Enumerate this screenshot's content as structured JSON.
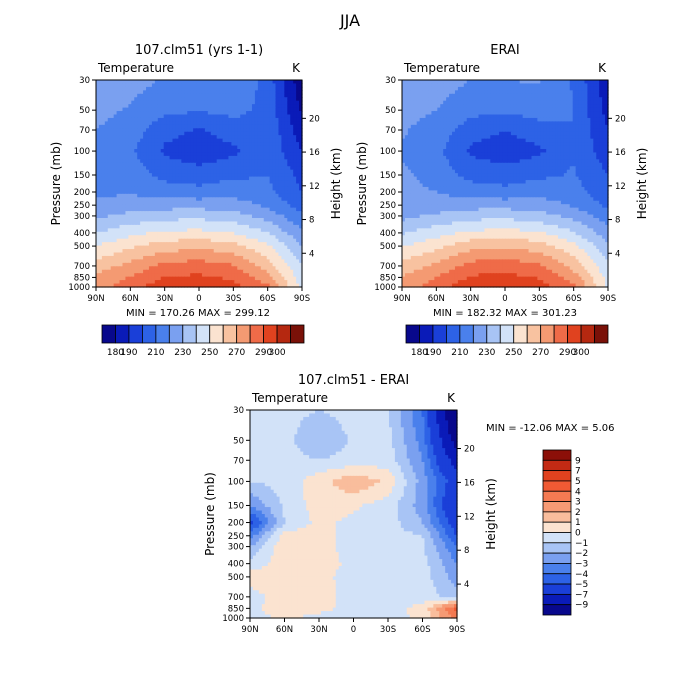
{
  "figure_title": "JJA",
  "chart_data": [
    {
      "type": "heatmap",
      "title": "107.clm51 (yrs 1-1)",
      "variable": "Temperature",
      "units": "K",
      "ylabel": "Pressure (mb)",
      "ylabel_right": "Height (km)",
      "xticks": [
        "90N",
        "60N",
        "30N",
        "0",
        "30S",
        "60S",
        "90S"
      ],
      "xrange": [
        90,
        -90
      ],
      "yticks": [
        30,
        50,
        70,
        100,
        150,
        200,
        250,
        300,
        400,
        500,
        700,
        850,
        1000
      ],
      "yrange": [
        30,
        1000
      ],
      "yscale": "log",
      "height_ticks": [
        4,
        8,
        12,
        16,
        20
      ],
      "min_max_text": "MIN = 170.26   MAX = 299.12",
      "colorbar": {
        "orientation": "horizontal",
        "levels": [
          "180",
          "190",
          "200",
          "210",
          "220",
          "230",
          "240",
          "250",
          "260",
          "270",
          "280",
          "290",
          "300"
        ],
        "labels": [
          "180",
          "190",
          "210",
          "230",
          "250",
          "270",
          "290",
          "300"
        ],
        "colors": [
          "#08088c",
          "#0a1bb8",
          "#1a3fd8",
          "#2d62e6",
          "#4a80ec",
          "#7aa0f0",
          "#a8c4f5",
          "#d2e2f8",
          "#fbe3d0",
          "#f8c2a0",
          "#f49a72",
          "#ef6b48",
          "#e0421f",
          "#b52810",
          "#7a1108"
        ]
      },
      "series": [
        {
          "pressure": 1000,
          "values": [
            277,
            285,
            297,
            298,
            294,
            282,
            246
          ]
        },
        {
          "pressure": 850,
          "values": [
            272,
            281,
            290,
            292,
            288,
            274,
            244
          ]
        },
        {
          "pressure": 700,
          "values": [
            265,
            273,
            283,
            285,
            281,
            265,
            240
          ]
        },
        {
          "pressure": 500,
          "values": [
            250,
            258,
            265,
            267,
            264,
            252,
            230
          ]
        },
        {
          "pressure": 400,
          "values": [
            240,
            247,
            252,
            253,
            250,
            240,
            222
          ]
        },
        {
          "pressure": 300,
          "values": [
            228,
            233,
            236,
            237,
            234,
            226,
            212
          ]
        },
        {
          "pressure": 250,
          "values": [
            222,
            225,
            226,
            226,
            225,
            218,
            205
          ]
        },
        {
          "pressure": 200,
          "values": [
            218,
            219,
            215,
            213,
            216,
            213,
            200
          ]
        },
        {
          "pressure": 150,
          "values": [
            217,
            215,
            207,
            205,
            208,
            210,
            197
          ]
        },
        {
          "pressure": 100,
          "values": [
            217,
            212,
            198,
            193,
            198,
            208,
            190
          ]
        },
        {
          "pressure": 70,
          "values": [
            220,
            215,
            204,
            199,
            205,
            208,
            184
          ]
        },
        {
          "pressure": 50,
          "values": [
            223,
            219,
            212,
            211,
            213,
            207,
            178
          ]
        },
        {
          "pressure": 30,
          "values": [
            227,
            224,
            219,
            219,
            220,
            206,
            172
          ]
        }
      ]
    },
    {
      "type": "heatmap",
      "title": "ERAI",
      "variable": "Temperature",
      "units": "K",
      "ylabel": "Pressure (mb)",
      "ylabel_right": "Height (km)",
      "xticks": [
        "90N",
        "60N",
        "30N",
        "0",
        "30S",
        "60S",
        "90S"
      ],
      "xrange": [
        90,
        -90
      ],
      "yticks": [
        30,
        50,
        70,
        100,
        150,
        200,
        250,
        300,
        400,
        500,
        700,
        850,
        1000
      ],
      "yrange": [
        30,
        1000
      ],
      "yscale": "log",
      "height_ticks": [
        4,
        8,
        12,
        16,
        20
      ],
      "min_max_text": "MIN = 182.32   MAX = 301.23",
      "colorbar": {
        "orientation": "horizontal",
        "levels": [
          "180",
          "190",
          "200",
          "210",
          "220",
          "230",
          "240",
          "250",
          "260",
          "270",
          "280",
          "290",
          "300"
        ],
        "labels": [
          "180",
          "190",
          "210",
          "230",
          "250",
          "270",
          "290",
          "300"
        ],
        "colors": [
          "#08088c",
          "#0a1bb8",
          "#1a3fd8",
          "#2d62e6",
          "#4a80ec",
          "#7aa0f0",
          "#a8c4f5",
          "#d2e2f8",
          "#fbe3d0",
          "#f8c2a0",
          "#f49a72",
          "#ef6b48",
          "#e0421f",
          "#b52810",
          "#7a1108"
        ]
      },
      "series": [
        {
          "pressure": 1000,
          "values": [
            276,
            284,
            298,
            299,
            295,
            283,
            248
          ]
        },
        {
          "pressure": 850,
          "values": [
            271,
            280,
            291,
            293,
            289,
            275,
            246
          ]
        },
        {
          "pressure": 700,
          "values": [
            264,
            272,
            284,
            286,
            282,
            266,
            242
          ]
        },
        {
          "pressure": 500,
          "values": [
            249,
            257,
            266,
            268,
            265,
            253,
            232
          ]
        },
        {
          "pressure": 400,
          "values": [
            239,
            246,
            252,
            254,
            251,
            241,
            224
          ]
        },
        {
          "pressure": 300,
          "values": [
            227,
            232,
            236,
            237,
            234,
            227,
            214
          ]
        },
        {
          "pressure": 250,
          "values": [
            221,
            224,
            226,
            226,
            225,
            219,
            208
          ]
        },
        {
          "pressure": 200,
          "values": [
            223,
            220,
            215,
            213,
            216,
            214,
            203
          ]
        },
        {
          "pressure": 150,
          "values": [
            222,
            216,
            207,
            205,
            208,
            211,
            200
          ]
        },
        {
          "pressure": 100,
          "values": [
            219,
            213,
            198,
            194,
            198,
            209,
            194
          ]
        },
        {
          "pressure": 70,
          "values": [
            221,
            216,
            205,
            200,
            206,
            210,
            190
          ]
        },
        {
          "pressure": 50,
          "values": [
            223,
            220,
            213,
            212,
            214,
            210,
            186
          ]
        },
        {
          "pressure": 30,
          "values": [
            227,
            225,
            220,
            220,
            221,
            209,
            183
          ]
        }
      ]
    },
    {
      "type": "heatmap",
      "title": "107.clm51 - ERAI",
      "variable": "Temperature",
      "units": "K",
      "ylabel": "Pressure (mb)",
      "ylabel_right": "Height (km)",
      "xticks": [
        "90N",
        "60N",
        "30N",
        "0",
        "30S",
        "60S",
        "90S"
      ],
      "xrange": [
        90,
        -90
      ],
      "yticks": [
        30,
        50,
        70,
        100,
        150,
        200,
        250,
        300,
        400,
        500,
        700,
        850,
        1000
      ],
      "yrange": [
        30,
        1000
      ],
      "yscale": "log",
      "height_ticks": [
        4,
        8,
        12,
        16,
        20
      ],
      "min_max_text": "MIN = -12.06   MAX =    5.06",
      "colorbar": {
        "orientation": "vertical",
        "levels": [
          "9",
          "7",
          "5",
          "4",
          "3",
          "2",
          "1",
          "0",
          "−1",
          "−2",
          "−3",
          "−4",
          "−5",
          "−7",
          "−9"
        ],
        "labels": [
          "9",
          "7",
          "5",
          "4",
          "3",
          "2",
          "1",
          "0",
          "−1",
          "−2",
          "−3",
          "−4",
          "−5",
          "−7",
          "−9"
        ],
        "colors": [
          "#8b0f08",
          "#c32a14",
          "#e0421f",
          "#f05a34",
          "#f47a52",
          "#f69a74",
          "#f9bd9c",
          "#fbe3d0",
          "#d2e2f8",
          "#a8c4f5",
          "#7aa0f0",
          "#4a80ec",
          "#2d62e6",
          "#1a3fd8",
          "#0a1bb8",
          "#08088c"
        ]
      },
      "series": [
        {
          "pressure": 1000,
          "values": [
            -0.5,
            0.3,
            -0.4,
            -0.6,
            -0.3,
            0.2,
            3.5
          ]
        },
        {
          "pressure": 850,
          "values": [
            -0.3,
            0.6,
            0.4,
            -0.5,
            -0.4,
            0.3,
            4.5
          ]
        },
        {
          "pressure": 700,
          "values": [
            -0.4,
            0.5,
            0.3,
            -0.3,
            -0.2,
            -0.4,
            -1.5
          ]
        },
        {
          "pressure": 500,
          "values": [
            0.5,
            0.4,
            0.3,
            -0.4,
            -0.2,
            -0.5,
            -2.5
          ]
        },
        {
          "pressure": 400,
          "values": [
            -0.6,
            0.6,
            0.5,
            -0.3,
            -0.5,
            -0.6,
            -3.0
          ]
        },
        {
          "pressure": 300,
          "values": [
            -2.0,
            0.8,
            0.5,
            -0.5,
            -0.6,
            -0.8,
            -4.0
          ]
        },
        {
          "pressure": 250,
          "values": [
            -3.5,
            0.5,
            0.4,
            -0.4,
            -0.6,
            -1.0,
            -5.0
          ]
        },
        {
          "pressure": 200,
          "values": [
            -5.5,
            -1.0,
            0.3,
            -0.3,
            -0.5,
            -2.0,
            -6.0
          ]
        },
        {
          "pressure": 150,
          "values": [
            -3.0,
            -0.8,
            0.5,
            0.2,
            -0.5,
            -2.5,
            -7.0
          ]
        },
        {
          "pressure": 100,
          "values": [
            -1.0,
            -0.6,
            0.6,
            1.8,
            0.8,
            -2.5,
            -6.0
          ]
        },
        {
          "pressure": 70,
          "values": [
            -1.0,
            -0.6,
            -1.0,
            -0.6,
            -0.5,
            -3.0,
            -8.0
          ]
        },
        {
          "pressure": 50,
          "values": [
            -0.5,
            -0.6,
            -2.0,
            -0.8,
            -0.6,
            -3.5,
            -10.0
          ]
        },
        {
          "pressure": 30,
          "values": [
            -0.4,
            -0.6,
            -1.0,
            -0.6,
            -1.0,
            -4.0,
            -12.0
          ]
        }
      ]
    }
  ]
}
